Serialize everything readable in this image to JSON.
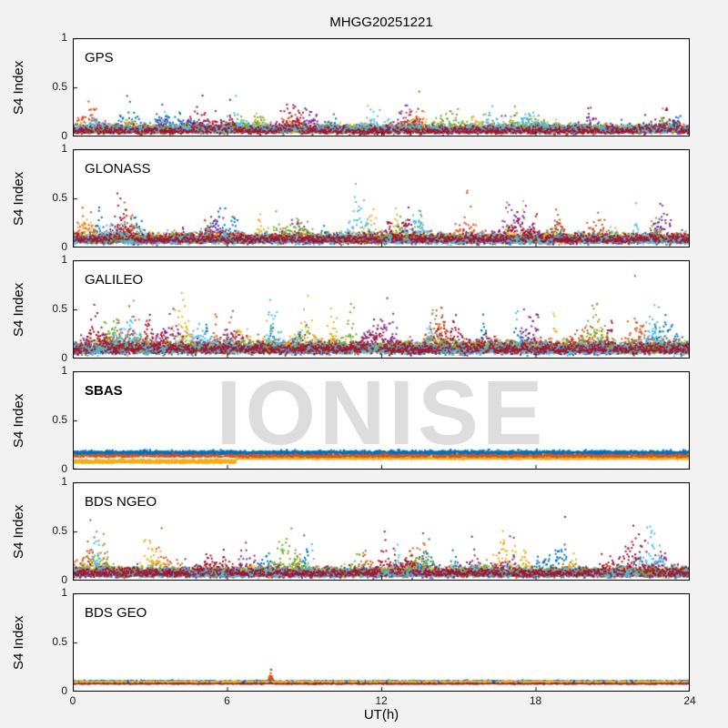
{
  "figure": {
    "title": "MHGG20251221",
    "xlabel": "UT(h)",
    "ylabel": "S4 Index",
    "watermark": "IONISE"
  },
  "palette": [
    "#0072BD",
    "#D95319",
    "#EDB120",
    "#7E2F8E",
    "#77AC30",
    "#4DBEEE",
    "#A2142F"
  ],
  "chart_data": {
    "type": "scatter",
    "title": "MHGG20251221",
    "xlabel": "UT(h)",
    "ylabel": "S4 Index",
    "xlim": [
      0,
      24
    ],
    "ylim": [
      0,
      1
    ],
    "x_ticks": [
      0,
      6,
      12,
      18,
      24
    ],
    "y_ticks": [
      0,
      0.5,
      1
    ],
    "grid": false,
    "legend": "none",
    "panels": [
      {
        "label": "GPS",
        "colors": [
          0,
          1,
          2,
          3,
          4,
          5,
          6
        ],
        "base": 0.045,
        "noise": 0.028,
        "skip": 0.45,
        "step": 0.009,
        "events": {
          "count": 6,
          "peak_max": 0.12
        },
        "typical_band": [
          0.0,
          0.15
        ],
        "spike_max": 0.32
      },
      {
        "label": "GLONASS",
        "colors": [
          0,
          1,
          2,
          3,
          4,
          5,
          6
        ],
        "base": 0.055,
        "noise": 0.033,
        "skip": 0.4,
        "step": 0.009,
        "events": {
          "count": 6,
          "peak_max": 0.16
        },
        "typical_band": [
          0.0,
          0.18
        ],
        "spike_max": 0.38
      },
      {
        "label": "GALILEO",
        "colors": [
          0,
          1,
          2,
          3,
          4,
          5,
          6
        ],
        "base": 0.07,
        "noise": 0.042,
        "skip": 0.35,
        "step": 0.009,
        "events": {
          "count": 7,
          "peak_max": 0.2
        },
        "typical_band": [
          0.0,
          0.22
        ],
        "spike_max": 0.46
      },
      {
        "label": "SBAS",
        "bold": true,
        "series": [
          {
            "color": 0,
            "base": 0.155,
            "noise": 0.012,
            "skip": 0.12,
            "step": 0.004
          },
          {
            "color": 2,
            "base": 0.115,
            "base_before": 0.075,
            "switch_t": 6.35,
            "noise": 0.012,
            "skip": 0.12,
            "step": 0.004
          },
          {
            "color": 1,
            "base": 0.13,
            "noise": 0.01,
            "skip": 0.65,
            "step": 0.006
          }
        ],
        "typical_band": [
          0.06,
          0.2
        ]
      },
      {
        "label": "BDS NGEO",
        "colors": [
          0,
          1,
          2,
          3,
          4,
          5,
          6
        ],
        "base": 0.055,
        "noise": 0.032,
        "skip": 0.4,
        "step": 0.009,
        "events": {
          "count": 6,
          "peak_max": 0.18
        },
        "typical_band": [
          0.0,
          0.2
        ],
        "spike_max": 0.45
      },
      {
        "label": "BDS GEO",
        "series": [
          {
            "color": 1,
            "base": 0.092,
            "noise": 0.006,
            "skip": 0.05,
            "step": 0.003,
            "events_list": [
              {
                "t": 7.7,
                "w": 0.06,
                "p": 0.055
              }
            ]
          },
          {
            "color": 6,
            "base": 0.088,
            "noise": 0.006,
            "skip": 0.3,
            "step": 0.004
          },
          {
            "color": 0,
            "base": 0.096,
            "noise": 0.005,
            "skip": 0.6,
            "step": 0.005
          },
          {
            "color": 2,
            "base": 0.09,
            "noise": 0.005,
            "skip": 0.8,
            "step": 0.006
          }
        ],
        "typical_band": [
          0.07,
          0.12
        ],
        "spike_max": 0.21
      }
    ]
  }
}
